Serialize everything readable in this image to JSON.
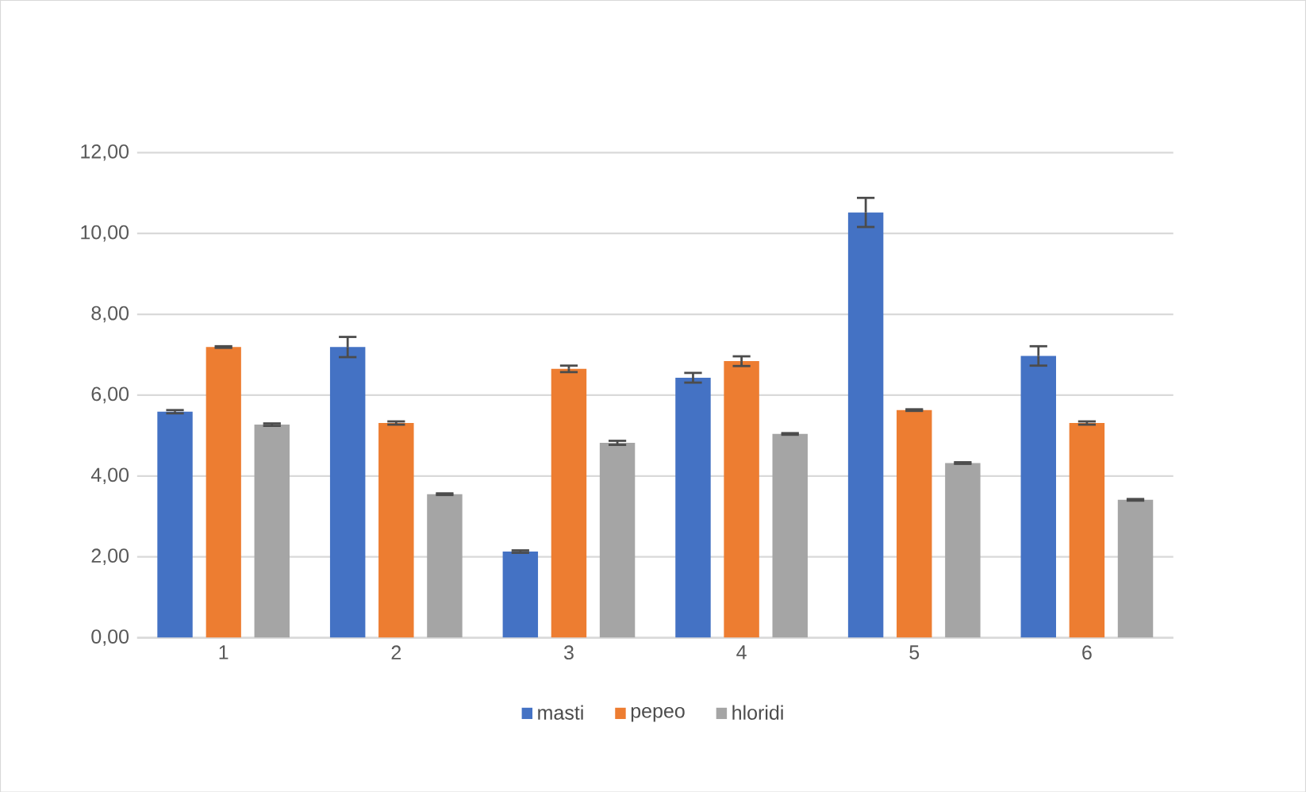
{
  "chart_data": {
    "type": "bar",
    "categories": [
      "1",
      "2",
      "3",
      "4",
      "5",
      "6"
    ],
    "series": [
      {
        "name": "masti",
        "color": "#4472c4",
        "values": [
          5.59,
          7.19,
          2.13,
          6.43,
          10.52,
          6.97
        ],
        "errors": [
          0.04,
          0.25,
          0.03,
          0.12,
          0.36,
          0.24
        ]
      },
      {
        "name": "pepeo",
        "color": "#ed7d31",
        "values": [
          7.19,
          5.31,
          6.65,
          6.84,
          5.63,
          5.31
        ],
        "errors": [
          0.02,
          0.04,
          0.08,
          0.12,
          0.02,
          0.04
        ]
      },
      {
        "name": "hloridi",
        "color": "#a5a5a5",
        "values": [
          5.27,
          3.55,
          4.82,
          5.04,
          4.32,
          3.41
        ],
        "errors": [
          0.03,
          0.02,
          0.05,
          0.02,
          0.02,
          0.02
        ]
      }
    ],
    "ylim": [
      0,
      12
    ],
    "yticks": [
      {
        "value": 0,
        "label": "0,00"
      },
      {
        "value": 2,
        "label": "2,00"
      },
      {
        "value": 4,
        "label": "4,00"
      },
      {
        "value": 6,
        "label": "6,00"
      },
      {
        "value": 8,
        "label": "8,00"
      },
      {
        "value": 10,
        "label": "10,00"
      },
      {
        "value": 12,
        "label": "12,00"
      }
    ],
    "grid": "y",
    "legend": "bottom"
  }
}
